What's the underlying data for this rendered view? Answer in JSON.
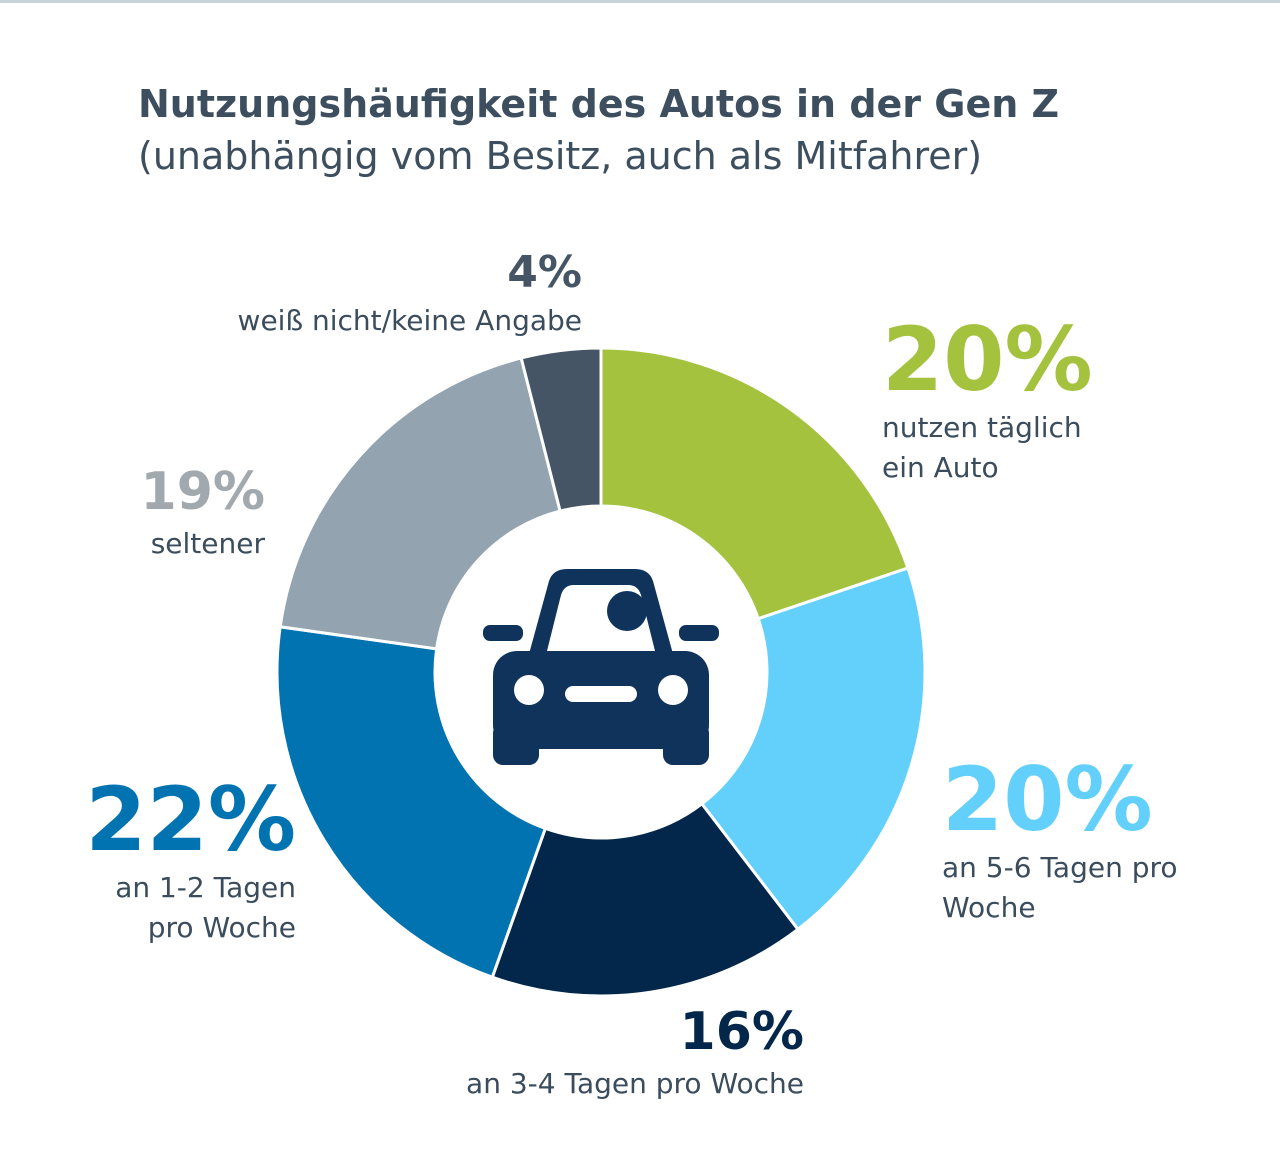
{
  "title_line1": "Nutzungshäufigkeit des Autos in der Gen Z",
  "title_line2": "(unabhängig vom Besitz, auch als Mitfahrer)",
  "center_icon": "car-with-driver-icon",
  "colors": {
    "title": "#3d4f5f",
    "label_text": "#3b4d5c",
    "center": "#10335c"
  },
  "chart_data": {
    "type": "pie",
    "donut": true,
    "segments": [
      {
        "value": 20,
        "pct_label": "20%",
        "label": "nutzen täglich\nein Auto",
        "color": "#a4c23e",
        "pct_color": "#a4c23e"
      },
      {
        "value": 20,
        "pct_label": "20%",
        "label": "an 5-6 Tagen pro\nWoche",
        "color": "#62d0fb",
        "pct_color": "#62d0fb"
      },
      {
        "value": 16,
        "pct_label": "16%",
        "label": "an 3-4 Tagen pro Woche",
        "color": "#02274b",
        "pct_color": "#02274b"
      },
      {
        "value": 22,
        "pct_label": "22%",
        "label": "an 1-2 Tagen\npro Woche",
        "color": "#0273b1",
        "pct_color": "#0273b1"
      },
      {
        "value": 19,
        "pct_label": "19%",
        "label": "seltener",
        "color": "#93a3b0",
        "pct_color": "#a2a9ae"
      },
      {
        "value": 4,
        "pct_label": "4%",
        "label": "weiß nicht/keine Angabe",
        "color": "#465566",
        "pct_color": "#465566"
      }
    ]
  }
}
